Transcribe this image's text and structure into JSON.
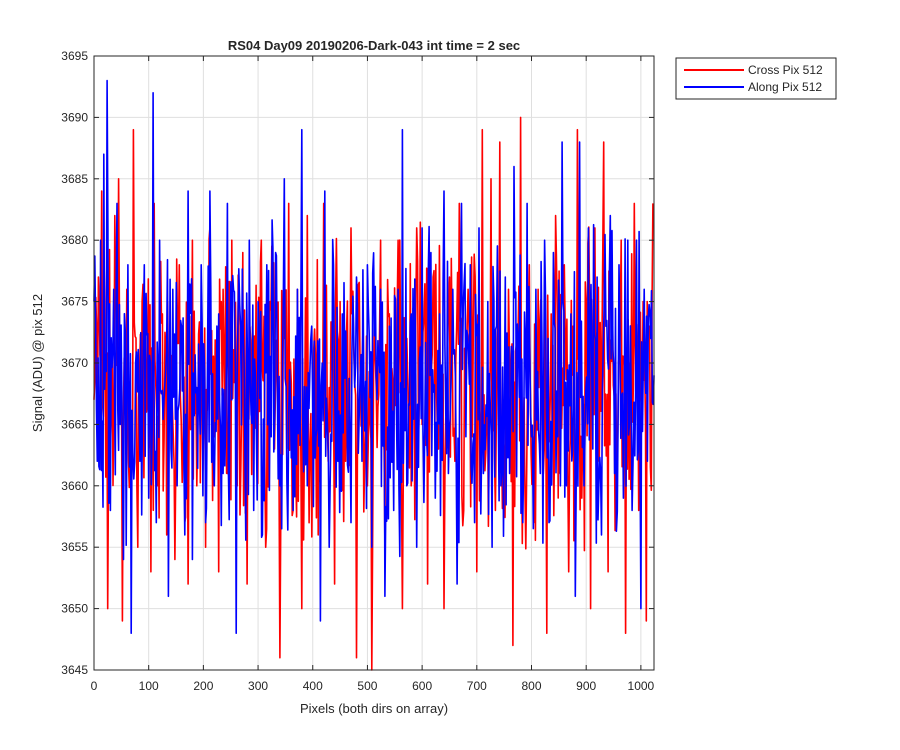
{
  "chart_data": {
    "type": "line",
    "title": "RS04 Day09 20190206-Dark-043 int time = 2 sec",
    "xlabel": "Pixels (both dirs on array)",
    "ylabel": "Signal (ADU) @ pix 512",
    "xlim": [
      0,
      1024
    ],
    "ylim": [
      3645,
      3695
    ],
    "xticks": [
      0,
      100,
      200,
      300,
      400,
      500,
      600,
      700,
      800,
      900,
      1000
    ],
    "yticks": [
      3645,
      3650,
      3655,
      3660,
      3665,
      3670,
      3675,
      3680,
      3685,
      3690,
      3695
    ],
    "grid": true,
    "legend_position": "outside-top-right",
    "noise_summary": {
      "mean": 3668,
      "min": 3645,
      "max": 3693,
      "n_points": 1024
    },
    "series": [
      {
        "name": "Cross Pix 512",
        "color": "#ff0000",
        "points": [
          [
            0,
            3667
          ],
          [
            8,
            3677
          ],
          [
            14,
            3684
          ],
          [
            20,
            3674
          ],
          [
            25,
            3650
          ],
          [
            30,
            3663
          ],
          [
            38,
            3682
          ],
          [
            45,
            3685
          ],
          [
            52,
            3649
          ],
          [
            60,
            3676
          ],
          [
            66,
            3662
          ],
          [
            72,
            3689
          ],
          [
            80,
            3655
          ],
          [
            88,
            3675
          ],
          [
            96,
            3666
          ],
          [
            104,
            3653
          ],
          [
            110,
            3683
          ],
          [
            116,
            3660
          ],
          [
            125,
            3674
          ],
          [
            133,
            3656
          ],
          [
            140,
            3670
          ],
          [
            148,
            3654
          ],
          [
            156,
            3678
          ],
          [
            163,
            3663
          ],
          [
            172,
            3652
          ],
          [
            180,
            3680
          ],
          [
            188,
            3660
          ],
          [
            196,
            3672
          ],
          [
            204,
            3655
          ],
          [
            212,
            3681
          ],
          [
            220,
            3664
          ],
          [
            228,
            3653
          ],
          [
            236,
            3676
          ],
          [
            244,
            3661
          ],
          [
            252,
            3680
          ],
          [
            262,
            3660
          ],
          [
            272,
            3679
          ],
          [
            280,
            3652
          ],
          [
            290,
            3673
          ],
          [
            298,
            3662
          ],
          [
            306,
            3680
          ],
          [
            314,
            3655
          ],
          [
            322,
            3675
          ],
          [
            330,
            3663
          ],
          [
            340,
            3646
          ],
          [
            348,
            3672
          ],
          [
            356,
            3683
          ],
          [
            364,
            3658
          ],
          [
            372,
            3676
          ],
          [
            380,
            3650
          ],
          [
            390,
            3682
          ],
          [
            400,
            3665
          ],
          [
            410,
            3656
          ],
          [
            420,
            3683
          ],
          [
            430,
            3668
          ],
          [
            440,
            3652
          ],
          [
            450,
            3675
          ],
          [
            460,
            3662
          ],
          [
            470,
            3681
          ],
          [
            480,
            3646
          ],
          [
            490,
            3670
          ],
          [
            500,
            3660
          ],
          [
            508,
            3645
          ],
          [
            516,
            3668
          ],
          [
            524,
            3680
          ],
          [
            532,
            3655
          ],
          [
            540,
            3674
          ],
          [
            548,
            3661
          ],
          [
            556,
            3680
          ],
          [
            564,
            3650
          ],
          [
            572,
            3672
          ],
          [
            580,
            3660
          ],
          [
            590,
            3681
          ],
          [
            600,
            3665
          ],
          [
            610,
            3652
          ],
          [
            620,
            3677
          ],
          [
            630,
            3663
          ],
          [
            640,
            3650
          ],
          [
            650,
            3677
          ],
          [
            660,
            3662
          ],
          [
            668,
            3683
          ],
          [
            676,
            3658
          ],
          [
            684,
            3676
          ],
          [
            692,
            3664
          ],
          [
            700,
            3653
          ],
          [
            710,
            3689
          ],
          [
            718,
            3666
          ],
          [
            726,
            3685
          ],
          [
            734,
            3658
          ],
          [
            742,
            3688
          ],
          [
            750,
            3663
          ],
          [
            758,
            3676
          ],
          [
            766,
            3647
          ],
          [
            774,
            3672
          ],
          [
            780,
            3690
          ],
          [
            788,
            3660
          ],
          [
            796,
            3678
          ],
          [
            804,
            3657
          ],
          [
            812,
            3676
          ],
          [
            820,
            3664
          ],
          [
            828,
            3648
          ],
          [
            836,
            3674
          ],
          [
            844,
            3682
          ],
          [
            852,
            3661
          ],
          [
            860,
            3678
          ],
          [
            868,
            3653
          ],
          [
            876,
            3673
          ],
          [
            884,
            3689
          ],
          [
            892,
            3659
          ],
          [
            900,
            3675
          ],
          [
            908,
            3650
          ],
          [
            916,
            3681
          ],
          [
            924,
            3662
          ],
          [
            932,
            3688
          ],
          [
            940,
            3653
          ],
          [
            948,
            3675
          ],
          [
            956,
            3660
          ],
          [
            964,
            3680
          ],
          [
            972,
            3648
          ],
          [
            980,
            3670
          ],
          [
            988,
            3683
          ],
          [
            996,
            3658
          ],
          [
            1004,
            3675
          ],
          [
            1010,
            3649
          ],
          [
            1016,
            3673
          ],
          [
            1022,
            3683
          ]
        ]
      },
      {
        "name": "Along Pix 512",
        "color": "#0000ff",
        "points": [
          [
            0,
            3675
          ],
          [
            6,
            3662
          ],
          [
            12,
            3680
          ],
          [
            18,
            3687
          ],
          [
            24,
            3693
          ],
          [
            30,
            3658
          ],
          [
            36,
            3676
          ],
          [
            42,
            3683
          ],
          [
            48,
            3665
          ],
          [
            54,
            3654
          ],
          [
            62,
            3678
          ],
          [
            68,
            3648
          ],
          [
            76,
            3670
          ],
          [
            84,
            3662
          ],
          [
            92,
            3678
          ],
          [
            100,
            3659
          ],
          [
            108,
            3692
          ],
          [
            114,
            3657
          ],
          [
            120,
            3680
          ],
          [
            128,
            3667
          ],
          [
            136,
            3651
          ],
          [
            144,
            3676
          ],
          [
            152,
            3660
          ],
          [
            160,
            3673
          ],
          [
            166,
            3656
          ],
          [
            172,
            3684
          ],
          [
            180,
            3654
          ],
          [
            188,
            3668
          ],
          [
            196,
            3678
          ],
          [
            204,
            3657
          ],
          [
            212,
            3684
          ],
          [
            220,
            3660
          ],
          [
            228,
            3674
          ],
          [
            236,
            3661
          ],
          [
            244,
            3683
          ],
          [
            252,
            3667
          ],
          [
            260,
            3648
          ],
          [
            268,
            3673
          ],
          [
            276,
            3663
          ],
          [
            284,
            3680
          ],
          [
            292,
            3658
          ],
          [
            300,
            3675
          ],
          [
            308,
            3656
          ],
          [
            316,
            3678
          ],
          [
            324,
            3664
          ],
          [
            332,
            3679
          ],
          [
            340,
            3660
          ],
          [
            348,
            3685
          ],
          [
            356,
            3666
          ],
          [
            364,
            3658
          ],
          [
            372,
            3676
          ],
          [
            380,
            3689
          ],
          [
            390,
            3660
          ],
          [
            398,
            3673
          ],
          [
            406,
            3664
          ],
          [
            414,
            3649
          ],
          [
            422,
            3684
          ],
          [
            430,
            3655
          ],
          [
            438,
            3678
          ],
          [
            446,
            3662
          ],
          [
            454,
            3674
          ],
          [
            462,
            3668
          ],
          [
            470,
            3657
          ],
          [
            480,
            3677
          ],
          [
            490,
            3662
          ],
          [
            500,
            3678
          ],
          [
            508,
            3655
          ],
          [
            516,
            3669
          ],
          [
            524,
            3676
          ],
          [
            532,
            3651
          ],
          [
            540,
            3673
          ],
          [
            548,
            3658
          ],
          [
            556,
            3676
          ],
          [
            564,
            3689
          ],
          [
            572,
            3660
          ],
          [
            580,
            3674
          ],
          [
            590,
            3655
          ],
          [
            600,
            3681
          ],
          [
            608,
            3664
          ],
          [
            616,
            3679
          ],
          [
            624,
            3659
          ],
          [
            632,
            3674
          ],
          [
            640,
            3684
          ],
          [
            648,
            3661
          ],
          [
            656,
            3676
          ],
          [
            664,
            3652
          ],
          [
            672,
            3683
          ],
          [
            680,
            3664
          ],
          [
            688,
            3678
          ],
          [
            696,
            3657
          ],
          [
            704,
            3681
          ],
          [
            712,
            3661
          ],
          [
            720,
            3675
          ],
          [
            728,
            3655
          ],
          [
            736,
            3673
          ],
          [
            744,
            3660
          ],
          [
            752,
            3677
          ],
          [
            760,
            3661
          ],
          [
            768,
            3686
          ],
          [
            776,
            3672
          ],
          [
            784,
            3657
          ],
          [
            792,
            3683
          ],
          [
            800,
            3664
          ],
          [
            808,
            3676
          ],
          [
            816,
            3661
          ],
          [
            824,
            3680
          ],
          [
            832,
            3657
          ],
          [
            840,
            3679
          ],
          [
            848,
            3664
          ],
          [
            856,
            3688
          ],
          [
            864,
            3660
          ],
          [
            872,
            3674
          ],
          [
            880,
            3651
          ],
          [
            888,
            3688
          ],
          [
            896,
            3660
          ],
          [
            904,
            3681
          ],
          [
            912,
            3663
          ],
          [
            920,
            3677
          ],
          [
            928,
            3656
          ],
          [
            936,
            3673
          ],
          [
            944,
            3682
          ],
          [
            952,
            3661
          ],
          [
            960,
            3678
          ],
          [
            968,
            3659
          ],
          [
            976,
            3680
          ],
          [
            984,
            3658
          ],
          [
            992,
            3680
          ],
          [
            1000,
            3650
          ],
          [
            1006,
            3676
          ],
          [
            1012,
            3662
          ],
          [
            1018,
            3672
          ],
          [
            1024,
            3669
          ]
        ]
      }
    ]
  }
}
